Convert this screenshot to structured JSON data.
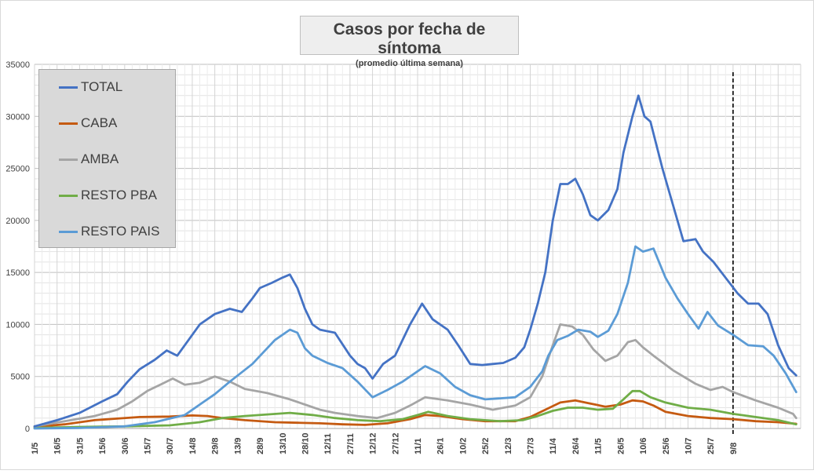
{
  "chart_data": {
    "type": "line",
    "title": "Casos por fecha de síntoma",
    "subtitle": "(promedio última semana)",
    "xlabel": "",
    "ylabel": "",
    "ylim": [
      0,
      35000
    ],
    "yticks": [
      0,
      5000,
      10000,
      15000,
      20000,
      25000,
      30000,
      35000
    ],
    "grid": "on",
    "legend_position": "top-left",
    "x_start": "1/5",
    "x_tick_labels": [
      "1/5",
      "16/5",
      "31/5",
      "15/6",
      "30/6",
      "15/7",
      "30/7",
      "14/8",
      "29/8",
      "13/9",
      "28/9",
      "13/10",
      "28/10",
      "12/11",
      "27/11",
      "12/12",
      "27/12",
      "11/1",
      "26/1",
      "10/2",
      "25/2",
      "12/3",
      "27/3",
      "11/4",
      "26/4",
      "11/5",
      "26/5",
      "10/6",
      "25/6",
      "10/7",
      "25/7",
      "9/8"
    ],
    "tick_interval_days": 15,
    "vertical_marker_x": "9/8",
    "colors": {
      "TOTAL": "#4472c4",
      "CABA": "#c55a11",
      "AMBA": "#a5a5a5",
      "RESTO PBA": "#70ad47",
      "RESTO PAIS": "#5b9bd5"
    },
    "series": [
      {
        "name": "TOTAL",
        "points": [
          [
            0,
            200
          ],
          [
            15,
            800
          ],
          [
            30,
            1500
          ],
          [
            45,
            2600
          ],
          [
            55,
            3300
          ],
          [
            62,
            4500
          ],
          [
            70,
            5700
          ],
          [
            80,
            6600
          ],
          [
            88,
            7500
          ],
          [
            95,
            7000
          ],
          [
            110,
            10000
          ],
          [
            120,
            11000
          ],
          [
            130,
            11500
          ],
          [
            138,
            11200
          ],
          [
            145,
            12500
          ],
          [
            150,
            13500
          ],
          [
            158,
            14000
          ],
          [
            165,
            14500
          ],
          [
            170,
            14800
          ],
          [
            175,
            13500
          ],
          [
            180,
            11500
          ],
          [
            185,
            10000
          ],
          [
            190,
            9500
          ],
          [
            200,
            9200
          ],
          [
            210,
            7000
          ],
          [
            215,
            6200
          ],
          [
            220,
            5800
          ],
          [
            225,
            4800
          ],
          [
            232,
            6200
          ],
          [
            240,
            7000
          ],
          [
            250,
            10000
          ],
          [
            258,
            12000
          ],
          [
            265,
            10500
          ],
          [
            275,
            9500
          ],
          [
            282,
            8000
          ],
          [
            290,
            6200
          ],
          [
            298,
            6100
          ],
          [
            305,
            6200
          ],
          [
            312,
            6300
          ],
          [
            320,
            6800
          ],
          [
            326,
            7800
          ],
          [
            330,
            9500
          ],
          [
            335,
            12000
          ],
          [
            340,
            15000
          ],
          [
            345,
            20000
          ],
          [
            350,
            23500
          ],
          [
            355,
            23500
          ],
          [
            360,
            24000
          ],
          [
            365,
            22500
          ],
          [
            370,
            20500
          ],
          [
            375,
            20000
          ],
          [
            382,
            21000
          ],
          [
            388,
            23000
          ],
          [
            392,
            26500
          ],
          [
            398,
            30000
          ],
          [
            402,
            32000
          ],
          [
            406,
            30000
          ],
          [
            410,
            29500
          ],
          [
            418,
            25000
          ],
          [
            425,
            21500
          ],
          [
            432,
            18000
          ],
          [
            440,
            18200
          ],
          [
            445,
            17000
          ],
          [
            452,
            16000
          ],
          [
            460,
            14500
          ],
          [
            468,
            13000
          ],
          [
            475,
            12000
          ],
          [
            482,
            12000
          ],
          [
            488,
            11000
          ],
          [
            495,
            8000
          ],
          [
            502,
            5800
          ],
          [
            507,
            5100
          ]
        ]
      },
      {
        "name": "CABA",
        "points": [
          [
            0,
            150
          ],
          [
            20,
            400
          ],
          [
            40,
            800
          ],
          [
            55,
            950
          ],
          [
            70,
            1100
          ],
          [
            90,
            1150
          ],
          [
            105,
            1250
          ],
          [
            115,
            1200
          ],
          [
            125,
            1000
          ],
          [
            140,
            800
          ],
          [
            160,
            600
          ],
          [
            175,
            550
          ],
          [
            190,
            500
          ],
          [
            205,
            400
          ],
          [
            220,
            350
          ],
          [
            235,
            500
          ],
          [
            250,
            900
          ],
          [
            260,
            1300
          ],
          [
            270,
            1200
          ],
          [
            285,
            900
          ],
          [
            300,
            700
          ],
          [
            320,
            700
          ],
          [
            330,
            1100
          ],
          [
            340,
            1800
          ],
          [
            350,
            2500
          ],
          [
            360,
            2700
          ],
          [
            370,
            2400
          ],
          [
            380,
            2100
          ],
          [
            390,
            2300
          ],
          [
            398,
            2700
          ],
          [
            405,
            2600
          ],
          [
            412,
            2200
          ],
          [
            420,
            1600
          ],
          [
            435,
            1200
          ],
          [
            450,
            1000
          ],
          [
            465,
            900
          ],
          [
            480,
            700
          ],
          [
            495,
            600
          ],
          [
            507,
            450
          ]
        ]
      },
      {
        "name": "AMBA",
        "points": [
          [
            0,
            200
          ],
          [
            20,
            700
          ],
          [
            40,
            1200
          ],
          [
            55,
            1800
          ],
          [
            65,
            2600
          ],
          [
            75,
            3600
          ],
          [
            85,
            4300
          ],
          [
            92,
            4800
          ],
          [
            100,
            4200
          ],
          [
            110,
            4400
          ],
          [
            120,
            5000
          ],
          [
            130,
            4500
          ],
          [
            140,
            3800
          ],
          [
            155,
            3400
          ],
          [
            170,
            2800
          ],
          [
            180,
            2300
          ],
          [
            190,
            1800
          ],
          [
            200,
            1500
          ],
          [
            215,
            1200
          ],
          [
            228,
            1000
          ],
          [
            240,
            1500
          ],
          [
            250,
            2200
          ],
          [
            260,
            3000
          ],
          [
            275,
            2700
          ],
          [
            290,
            2300
          ],
          [
            305,
            1800
          ],
          [
            320,
            2200
          ],
          [
            330,
            3000
          ],
          [
            338,
            5000
          ],
          [
            345,
            8000
          ],
          [
            350,
            10000
          ],
          [
            358,
            9800
          ],
          [
            365,
            9000
          ],
          [
            372,
            7600
          ],
          [
            380,
            6500
          ],
          [
            388,
            7000
          ],
          [
            395,
            8300
          ],
          [
            400,
            8500
          ],
          [
            405,
            7800
          ],
          [
            412,
            7000
          ],
          [
            425,
            5600
          ],
          [
            440,
            4300
          ],
          [
            450,
            3700
          ],
          [
            458,
            4000
          ],
          [
            465,
            3500
          ],
          [
            480,
            2700
          ],
          [
            495,
            2000
          ],
          [
            505,
            1400
          ],
          [
            507,
            1000
          ]
        ]
      },
      {
        "name": "RESTO PBA",
        "points": [
          [
            0,
            50
          ],
          [
            30,
            150
          ],
          [
            60,
            200
          ],
          [
            90,
            300
          ],
          [
            110,
            600
          ],
          [
            125,
            1000
          ],
          [
            140,
            1200
          ],
          [
            155,
            1350
          ],
          [
            170,
            1500
          ],
          [
            185,
            1300
          ],
          [
            200,
            1000
          ],
          [
            215,
            800
          ],
          [
            230,
            700
          ],
          [
            245,
            900
          ],
          [
            255,
            1300
          ],
          [
            262,
            1600
          ],
          [
            275,
            1200
          ],
          [
            290,
            900
          ],
          [
            310,
            700
          ],
          [
            325,
            800
          ],
          [
            335,
            1200
          ],
          [
            345,
            1700
          ],
          [
            355,
            2000
          ],
          [
            365,
            2000
          ],
          [
            375,
            1800
          ],
          [
            385,
            1900
          ],
          [
            392,
            2800
          ],
          [
            398,
            3600
          ],
          [
            403,
            3600
          ],
          [
            410,
            3000
          ],
          [
            420,
            2500
          ],
          [
            435,
            2000
          ],
          [
            450,
            1800
          ],
          [
            465,
            1400
          ],
          [
            480,
            1100
          ],
          [
            495,
            800
          ],
          [
            507,
            400
          ]
        ]
      },
      {
        "name": "RESTO PAIS",
        "points": [
          [
            0,
            0
          ],
          [
            30,
            50
          ],
          [
            60,
            200
          ],
          [
            80,
            600
          ],
          [
            100,
            1300
          ],
          [
            110,
            2300
          ],
          [
            120,
            3300
          ],
          [
            130,
            4500
          ],
          [
            145,
            6200
          ],
          [
            160,
            8500
          ],
          [
            170,
            9500
          ],
          [
            175,
            9200
          ],
          [
            180,
            7700
          ],
          [
            185,
            7000
          ],
          [
            195,
            6300
          ],
          [
            205,
            5800
          ],
          [
            215,
            4500
          ],
          [
            225,
            3000
          ],
          [
            235,
            3700
          ],
          [
            245,
            4500
          ],
          [
            260,
            6000
          ],
          [
            270,
            5300
          ],
          [
            280,
            4000
          ],
          [
            290,
            3200
          ],
          [
            300,
            2800
          ],
          [
            310,
            2900
          ],
          [
            320,
            3000
          ],
          [
            330,
            4000
          ],
          [
            338,
            5500
          ],
          [
            342,
            7000
          ],
          [
            348,
            8500
          ],
          [
            355,
            8900
          ],
          [
            362,
            9500
          ],
          [
            370,
            9300
          ],
          [
            375,
            8800
          ],
          [
            382,
            9400
          ],
          [
            388,
            11000
          ],
          [
            395,
            14000
          ],
          [
            400,
            17500
          ],
          [
            405,
            17000
          ],
          [
            412,
            17300
          ],
          [
            420,
            14500
          ],
          [
            428,
            12500
          ],
          [
            435,
            11000
          ],
          [
            442,
            9600
          ],
          [
            448,
            11200
          ],
          [
            455,
            9900
          ],
          [
            465,
            9000
          ],
          [
            475,
            8000
          ],
          [
            485,
            7900
          ],
          [
            492,
            7000
          ],
          [
            500,
            5300
          ],
          [
            507,
            3500
          ]
        ]
      }
    ]
  }
}
